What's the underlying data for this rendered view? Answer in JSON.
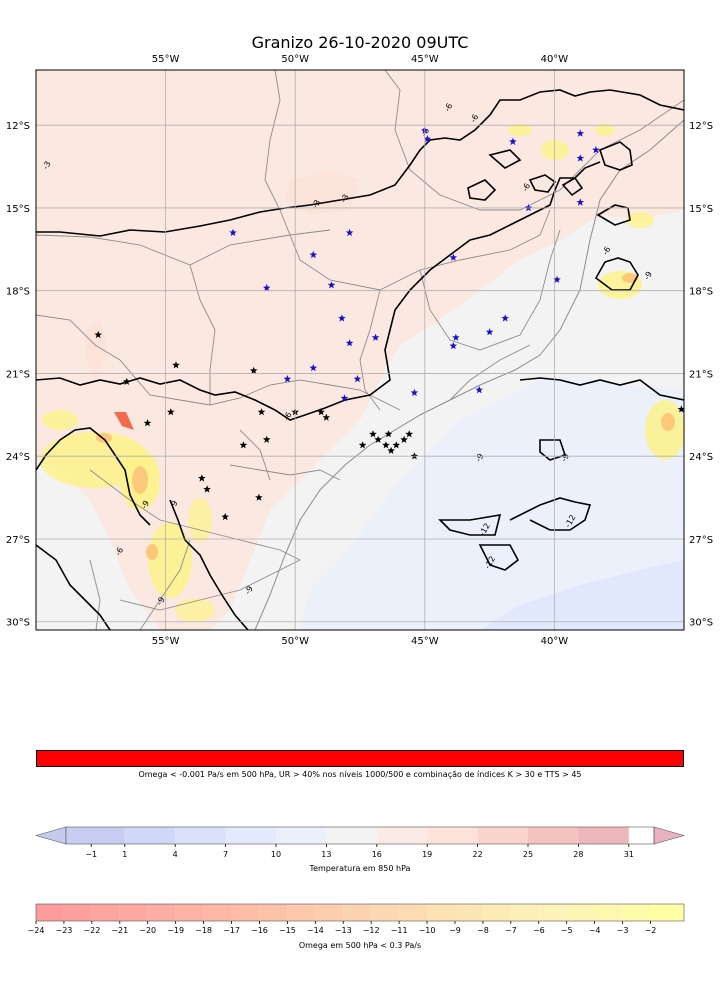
{
  "title": "Granizo 26-10-2020 09UTC",
  "map": {
    "lon_ticks": [
      {
        "lon": -55,
        "label": "55°W"
      },
      {
        "lon": -50,
        "label": "50°W"
      },
      {
        "lon": -45,
        "label": "45°W"
      },
      {
        "lon": -40,
        "label": "40°W"
      }
    ],
    "lat_ticks": [
      {
        "lat": -12,
        "label": "12°S"
      },
      {
        "lat": -15,
        "label": "15°S"
      },
      {
        "lat": -18,
        "label": "18°S"
      },
      {
        "lat": -21,
        "label": "21°S"
      },
      {
        "lat": -24,
        "label": "24°S"
      },
      {
        "lat": -27,
        "label": "27°S"
      },
      {
        "lat": -30,
        "label": "30°S"
      }
    ],
    "extent": {
      "lon_min": -60,
      "lon_max": -35,
      "lat_min": -30.3,
      "lat_max": -10
    },
    "grid": true,
    "contour_labels": [
      {
        "text": "-6",
        "lon": -44,
        "lat": -11.4
      },
      {
        "text": "-6",
        "lon": -44.9,
        "lat": -12.3
      },
      {
        "text": "-6",
        "lon": -43,
        "lat": -11.8
      },
      {
        "text": "-6",
        "lon": -41,
        "lat": -14.3
      },
      {
        "text": "-3",
        "lon": -59.5,
        "lat": -13.5
      },
      {
        "text": "-3",
        "lon": -49.1,
        "lat": -14.9
      },
      {
        "text": "-3",
        "lon": -48,
        "lat": -14.7
      },
      {
        "text": "-6",
        "lon": -37.9,
        "lat": -16.6
      },
      {
        "text": "-9",
        "lon": -36.3,
        "lat": -17.5
      },
      {
        "text": "-6",
        "lon": -50.2,
        "lat": -22.6
      },
      {
        "text": "-9",
        "lon": -55.7,
        "lat": -25.8
      },
      {
        "text": "-9",
        "lon": -54.6,
        "lat": -25.8
      },
      {
        "text": "-6",
        "lon": -56.7,
        "lat": -27.5
      },
      {
        "text": "-9",
        "lon": -42.8,
        "lat": -24.1
      },
      {
        "text": "-9",
        "lon": -39.5,
        "lat": -24.1
      },
      {
        "text": "-12",
        "lon": -42.6,
        "lat": -26.7
      },
      {
        "text": "-12",
        "lon": -39.3,
        "lat": -26.4
      },
      {
        "text": "-12",
        "lon": -42.4,
        "lat": -27.9
      },
      {
        "text": "-9",
        "lon": -51.7,
        "lat": -28.9
      },
      {
        "text": "-9",
        "lon": -55.1,
        "lat": -29.3
      }
    ],
    "hail_stars_black": [
      [
        -57.6,
        -19.6
      ],
      [
        -56.5,
        -21.3
      ],
      [
        -55.7,
        -22.8
      ],
      [
        -54.6,
        -20.7
      ],
      [
        -54.8,
        -22.4
      ],
      [
        -53.6,
        -24.8
      ],
      [
        -53.4,
        -25.2
      ],
      [
        -52.7,
        -26.2
      ],
      [
        -52,
        -23.6
      ],
      [
        -51.4,
        -25.5
      ],
      [
        -51.3,
        -22.4
      ],
      [
        -51.6,
        -20.9
      ],
      [
        -51.1,
        -23.4
      ],
      [
        -50,
        -22.4
      ],
      [
        -49,
        -22.4
      ],
      [
        -48.8,
        -22.6
      ],
      [
        -47.4,
        -23.6
      ],
      [
        -47,
        -23.2
      ],
      [
        -46.8,
        -23.4
      ],
      [
        -46.5,
        -23.6
      ],
      [
        -46.3,
        -23.8
      ],
      [
        -46.1,
        -23.6
      ],
      [
        -46.4,
        -23.2
      ],
      [
        -45.8,
        -23.4
      ],
      [
        -45.6,
        -23.2
      ],
      [
        -45.4,
        -24
      ],
      [
        -35.1,
        -22.3
      ]
    ],
    "hail_stars_blue": [
      [
        -45,
        -12.2
      ],
      [
        -44.9,
        -12.5
      ],
      [
        -41.6,
        -12.6
      ],
      [
        -39,
        -12.3
      ],
      [
        -38.4,
        -12.9
      ],
      [
        -39,
        -13.2
      ],
      [
        -41,
        -15
      ],
      [
        -39,
        -14.8
      ],
      [
        -52.4,
        -15.9
      ],
      [
        -49.3,
        -16.7
      ],
      [
        -47.9,
        -15.9
      ],
      [
        -51.1,
        -17.9
      ],
      [
        -48.6,
        -17.8
      ],
      [
        -43.9,
        -16.8
      ],
      [
        -39.9,
        -17.6
      ],
      [
        -48.2,
        -19
      ],
      [
        -47.9,
        -19.9
      ],
      [
        -46.9,
        -19.7
      ],
      [
        -43.8,
        -19.7
      ],
      [
        -43.9,
        -20
      ],
      [
        -42.5,
        -19.5
      ],
      [
        -41.9,
        -19
      ],
      [
        -49.3,
        -20.8
      ],
      [
        -50.3,
        -21.2
      ],
      [
        -47.6,
        -21.2
      ],
      [
        -48.1,
        -21.9
      ],
      [
        -45.4,
        -21.7
      ],
      [
        -42.9,
        -21.6
      ]
    ]
  },
  "colorbars": [
    {
      "id": "omega-red",
      "label": "Omega < -0.001 Pa/s em 500 hPa, UR > 40% nos níveis 1000/500 e combinação de índices K > 30 e TTS > 45",
      "color": "#ff0000"
    },
    {
      "id": "temperatura-850",
      "label": "Temperatura em 850 hPa",
      "ticks": [
        "-1",
        "1",
        "4",
        "7",
        "10",
        "13",
        "16",
        "19",
        "22",
        "25",
        "28",
        "31"
      ],
      "tick_values": [
        -1,
        1,
        4,
        7,
        10,
        13,
        16,
        19,
        22,
        25,
        28,
        31
      ],
      "range": [
        -2.5,
        32.5
      ],
      "bounds": [
        -2.5,
        1,
        4,
        7,
        10,
        13,
        16,
        19,
        22,
        25,
        28,
        31
      ],
      "colors": [
        "#c7cdf2",
        "#d0d8f8",
        "#d9e1fb",
        "#e3eafc",
        "#ebf0fb",
        "#f3f3f3",
        "#fbeae6",
        "#fde3db",
        "#fbd5cc",
        "#f5c3bd",
        "#ecb8bb"
      ],
      "extend_low": "#c4cbef",
      "extend_high": "#e9b2c0"
    },
    {
      "id": "omega-500",
      "label": "Omega em 500 hPa < 0.3 Pa/s",
      "ticks": [
        "−24",
        "−23",
        "−22",
        "−21",
        "−20",
        "−19",
        "−18",
        "−17",
        "−16",
        "−15",
        "−14",
        "−13",
        "−12",
        "−11",
        "−10",
        "−9",
        "−8",
        "−7",
        "−6",
        "−5",
        "−4",
        "−3",
        "−2"
      ],
      "range": [
        -24,
        -0.8
      ],
      "colors": [
        "#fd9c9c",
        "#fda09d",
        "#fda59f",
        "#fda9a1",
        "#fdaea2",
        "#fdb3a4",
        "#fdb8a5",
        "#fdbda7",
        "#fdc3a9",
        "#fdc8ab",
        "#fdcdac",
        "#fdd2ae",
        "#fdd8b0",
        "#fddcb1",
        "#fde2b3",
        "#fde6b5",
        "#fdebb6",
        "#fdefb8",
        "#fdf2b7",
        "#fdf5b3",
        "#fef8ae",
        "#fefbaa",
        "#ffffa6"
      ]
    }
  ],
  "colors": {
    "warm_fill": "#fbe8e1",
    "warm_fill_2": "#fde1d8",
    "neutral_fill": "#f3f3f3",
    "cool_fill": "#ebf0fb",
    "cool_fill_2": "#e1e8fb",
    "hail_yellow": "#fdf28a",
    "hail_orange": "#fdc87a",
    "hail_red": "#f46a4a",
    "star_black": "#000000",
    "star_blue": "#1a10c8",
    "state_border": "#8c8c8c",
    "contour": "#000000"
  }
}
